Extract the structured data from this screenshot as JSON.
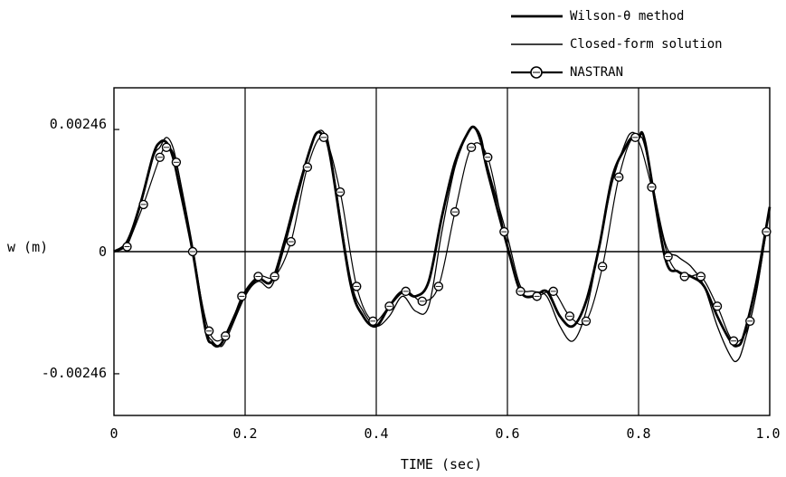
{
  "chart_data": {
    "type": "line",
    "xlabel": "TIME (sec)",
    "ylabel": "w (m)",
    "xlim": [
      0,
      1.0
    ],
    "ylim": [
      -0.0033,
      0.0033
    ],
    "x_ticks": [
      "0",
      "0.2",
      "0.4",
      "0.6",
      "0.8",
      "1.0"
    ],
    "y_ticks": [
      "0.00246",
      "0",
      "-0.00246"
    ],
    "grid": "vertical lines at 0.2 sec intervals",
    "legend_position": "top-right, above plot",
    "series": [
      {
        "name": "Wilson-θ method",
        "style": "thick-line",
        "x": [
          0,
          0.02,
          0.04,
          0.06,
          0.07,
          0.08,
          0.09,
          0.1,
          0.12,
          0.14,
          0.15,
          0.16,
          0.17,
          0.2,
          0.22,
          0.24,
          0.26,
          0.28,
          0.3,
          0.31,
          0.32,
          0.33,
          0.36,
          0.38,
          0.4,
          0.42,
          0.44,
          0.46,
          0.48,
          0.5,
          0.52,
          0.54,
          0.55,
          0.56,
          0.57,
          0.6,
          0.62,
          0.64,
          0.66,
          0.68,
          0.7,
          0.72,
          0.74,
          0.76,
          0.78,
          0.79,
          0.8,
          0.81,
          0.84,
          0.86,
          0.88,
          0.9,
          0.92,
          0.94,
          0.95,
          0.96,
          0.98,
          1.0
        ],
        "values": [
          0.0,
          0.0002,
          0.00095,
          0.00195,
          0.0022,
          0.0022,
          0.0019,
          0.0013,
          0.0,
          -0.0016,
          -0.00185,
          -0.0019,
          -0.0017,
          -0.00085,
          -0.00055,
          -0.0006,
          0.0002,
          0.0012,
          0.0021,
          0.0024,
          0.0023,
          0.0019,
          -0.0006,
          -0.0013,
          -0.0015,
          -0.0011,
          -0.0008,
          -0.0009,
          -0.0006,
          0.0007,
          0.0018,
          0.0024,
          0.0025,
          0.0022,
          0.0016,
          0.0001,
          -0.0008,
          -0.0009,
          -0.0008,
          -0.0013,
          -0.0015,
          -0.001,
          0.0001,
          0.0015,
          0.0021,
          0.0023,
          0.0023,
          0.0022,
          -0.0001,
          -0.0004,
          -0.0005,
          -0.0007,
          -0.0013,
          -0.0018,
          -0.0019,
          -0.0017,
          -0.0006,
          0.0009
        ]
      },
      {
        "name": "Closed-form solution",
        "style": "thin-line",
        "x": [
          0,
          0.02,
          0.04,
          0.06,
          0.07,
          0.08,
          0.09,
          0.1,
          0.12,
          0.14,
          0.15,
          0.16,
          0.17,
          0.2,
          0.22,
          0.24,
          0.26,
          0.28,
          0.3,
          0.31,
          0.32,
          0.33,
          0.36,
          0.38,
          0.4,
          0.42,
          0.44,
          0.46,
          0.48,
          0.5,
          0.52,
          0.54,
          0.55,
          0.56,
          0.57,
          0.6,
          0.62,
          0.64,
          0.66,
          0.68,
          0.7,
          0.72,
          0.74,
          0.76,
          0.78,
          0.79,
          0.8,
          0.81,
          0.84,
          0.86,
          0.88,
          0.9,
          0.92,
          0.94,
          0.95,
          0.96,
          0.98,
          1.0
        ],
        "values": [
          0.0,
          0.00015,
          0.0009,
          0.0019,
          0.0021,
          0.0023,
          0.0021,
          0.0015,
          0.0001,
          -0.0015,
          -0.0018,
          -0.0019,
          -0.0018,
          -0.0009,
          -0.0006,
          -0.0007,
          0.0001,
          0.0011,
          0.0021,
          0.0024,
          0.0024,
          0.002,
          -0.0005,
          -0.0012,
          -0.0015,
          -0.0013,
          -0.0009,
          -0.0012,
          -0.0011,
          0.0004,
          0.0017,
          0.0024,
          0.0025,
          0.0023,
          0.0017,
          0.0003,
          -0.0007,
          -0.0008,
          -0.0009,
          -0.0015,
          -0.0018,
          -0.0012,
          0.0001,
          0.0014,
          0.0022,
          0.0024,
          0.0023,
          0.0021,
          0.0002,
          -0.0001,
          -0.0003,
          -0.0007,
          -0.0015,
          -0.0021,
          -0.0022,
          -0.0019,
          -0.0008,
          0.0009
        ]
      },
      {
        "name": "NASTRAN",
        "style": "line-with-circles",
        "x": [
          0.02,
          0.045,
          0.07,
          0.08,
          0.095,
          0.12,
          0.145,
          0.17,
          0.195,
          0.22,
          0.245,
          0.27,
          0.295,
          0.32,
          0.345,
          0.37,
          0.395,
          0.42,
          0.445,
          0.47,
          0.495,
          0.52,
          0.545,
          0.57,
          0.595,
          0.62,
          0.645,
          0.67,
          0.695,
          0.72,
          0.745,
          0.77,
          0.795,
          0.82,
          0.845,
          0.87,
          0.895,
          0.92,
          0.945,
          0.97,
          0.995
        ],
        "values": [
          0.0001,
          0.00095,
          0.0019,
          0.0021,
          0.0018,
          0.0,
          -0.0016,
          -0.0017,
          -0.0009,
          -0.0005,
          -0.0005,
          0.0002,
          0.0017,
          0.0023,
          0.0012,
          -0.0007,
          -0.0014,
          -0.0011,
          -0.0008,
          -0.001,
          -0.0007,
          0.0008,
          0.0021,
          0.0019,
          0.0004,
          -0.0008,
          -0.0009,
          -0.0008,
          -0.0013,
          -0.0014,
          -0.0003,
          0.0015,
          0.0023,
          0.0013,
          -0.0001,
          -0.0005,
          -0.0005,
          -0.0011,
          -0.0018,
          -0.0014,
          0.0004
        ]
      }
    ]
  }
}
